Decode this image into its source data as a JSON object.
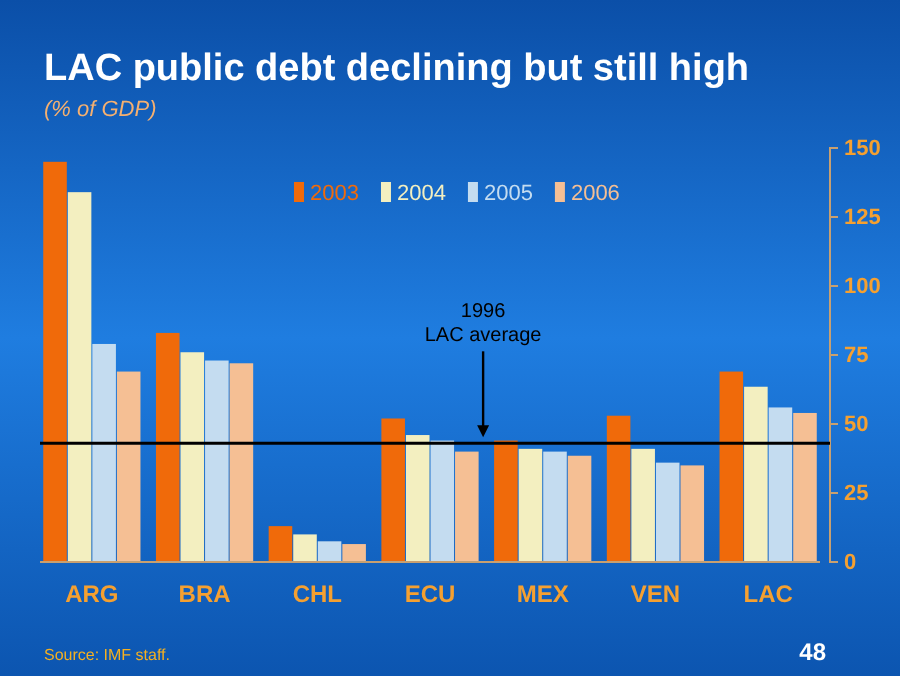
{
  "chart_data": {
    "type": "bar",
    "title": "LAC public debt declining but still high",
    "subtitle": "(% of GDP)",
    "categories": [
      "ARG",
      "BRA",
      "CHL",
      "ECU",
      "MEX",
      "VEN",
      "LAC"
    ],
    "series": [
      {
        "name": "2003",
        "color": "#f06a0a",
        "values": [
          145,
          83,
          13,
          52,
          44,
          53,
          69
        ]
      },
      {
        "name": "2004",
        "color": "#f3efc0",
        "values": [
          134,
          76,
          10,
          46,
          41,
          41,
          63.5
        ]
      },
      {
        "name": "2005",
        "color": "#c4dcf0",
        "values": [
          79,
          73,
          7.5,
          44,
          40,
          36,
          56
        ]
      },
      {
        "name": "2006",
        "color": "#f5bf94",
        "values": [
          69,
          72,
          6.5,
          40,
          38.5,
          35,
          54
        ]
      }
    ],
    "ylim": [
      0,
      150
    ],
    "yticks": [
      0,
      25,
      50,
      75,
      100,
      125,
      150
    ],
    "ref_lines": [
      {
        "axis": "y",
        "value": 43,
        "label": "1996\nLAC average",
        "color": "#000000"
      }
    ],
    "legend": "top",
    "annotations": [
      "Source: IMF staff.",
      "48"
    ]
  }
}
